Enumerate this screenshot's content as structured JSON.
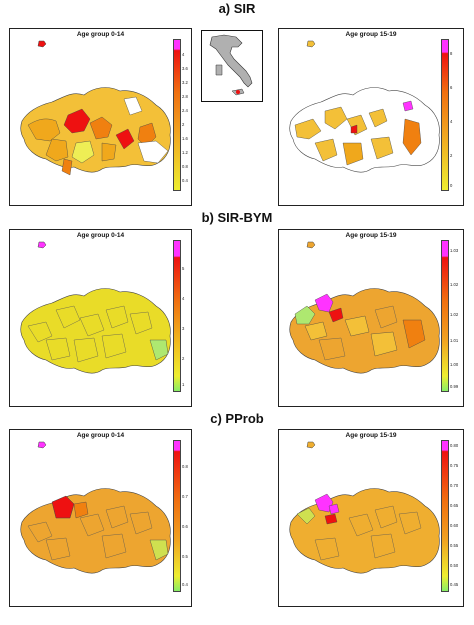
{
  "sections": [
    {
      "title": "a) SIR",
      "left": {
        "title": "Age group 0-14",
        "legend_labels": [
          "4",
          "3.6",
          "3.2",
          "2.8",
          "2.4",
          "2",
          "1.6",
          "1.2",
          "0.8",
          "0.4"
        ],
        "fill": "#f0a81c"
      },
      "right": {
        "title": "Age group 15-19",
        "legend_labels": [
          "8",
          "6",
          "4",
          "2",
          "0"
        ],
        "fill": "#f3c038"
      }
    },
    {
      "title": "b) SIR-BYM",
      "left": {
        "title": "Age group 0-14",
        "legend_labels": [
          "5",
          "4",
          "3",
          "2",
          "1"
        ],
        "fill": "#e9dc28"
      },
      "right": {
        "title": "Age group 15-19",
        "legend_labels": [
          "1.03",
          "1.02",
          "1.02",
          "1.01",
          "1.00",
          "0.99"
        ],
        "fill": "#eda530"
      }
    },
    {
      "title": "c) PProb",
      "left": {
        "title": "Age group 0-14",
        "legend_labels": [
          "0.8",
          "0.7",
          "0.6",
          "0.5",
          "0.4"
        ],
        "fill": "#eda530"
      },
      "right": {
        "title": "Age group 15-19",
        "legend_labels": [
          "0.80",
          "0.75",
          "0.70",
          "0.65",
          "0.60",
          "0.55",
          "0.50",
          "0.45"
        ],
        "fill": "#efae30"
      }
    }
  ],
  "colors": {
    "scale_top": "#ff33ff",
    "scale_high": "#ee1111",
    "scale_mid": "#f0a020",
    "scale_low": "#eeee30",
    "scale_bottom": "#88ee66",
    "boundary": "#444444",
    "missing": "#ffffff"
  },
  "inset": {
    "name": "italy-locator-map-icon"
  }
}
